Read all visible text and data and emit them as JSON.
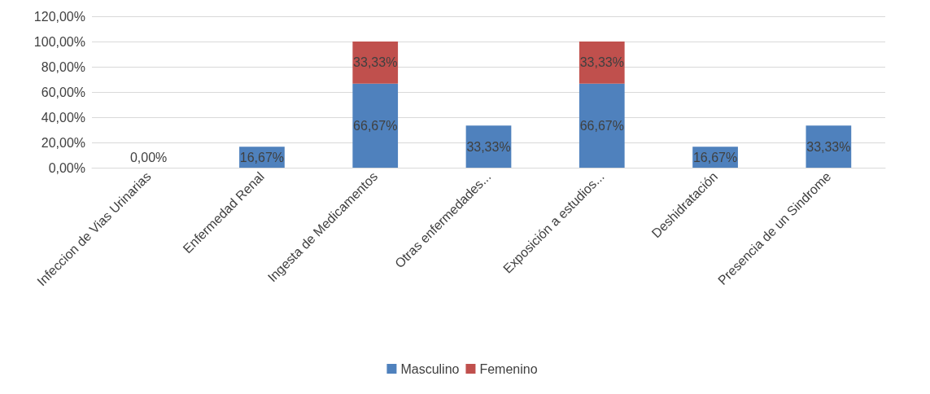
{
  "chart_data": {
    "type": "bar",
    "stacked": true,
    "categories": [
      "Infeccion de Vias Urinarias",
      "Enfermedad Renal",
      "Ingesta de Medicamentos",
      "Otras enfermedades...",
      "Exposición a estudios...",
      "Deshidratación",
      "Presencia de un Sindrome"
    ],
    "series": [
      {
        "name": "Masculino",
        "color": "#4f81bd",
        "values": [
          0,
          16.67,
          66.67,
          33.33,
          66.67,
          16.67,
          33.33
        ],
        "value_labels": [
          "0,00%",
          "16,67%",
          "66,67%",
          "33,33%",
          "66,67%",
          "16,67%",
          "33,33%"
        ]
      },
      {
        "name": "Femenino",
        "color": "#c0504d",
        "values": [
          0,
          0,
          33.33,
          0,
          33.33,
          0,
          0
        ],
        "value_labels": [
          null,
          null,
          "33,33%",
          null,
          "33,33%",
          null,
          null
        ]
      }
    ],
    "ylim": [
      0,
      120
    ],
    "yticks": [
      {
        "value": 0,
        "label": "0,00%"
      },
      {
        "value": 20,
        "label": "20,00%"
      },
      {
        "value": 40,
        "label": "40,00%"
      },
      {
        "value": 60,
        "label": "60,00%"
      },
      {
        "value": 80,
        "label": "80,00%"
      },
      {
        "value": 100,
        "label": "100,00%"
      },
      {
        "value": 120,
        "label": "120,00%"
      }
    ],
    "grid": "y",
    "legend": "bottom"
  }
}
